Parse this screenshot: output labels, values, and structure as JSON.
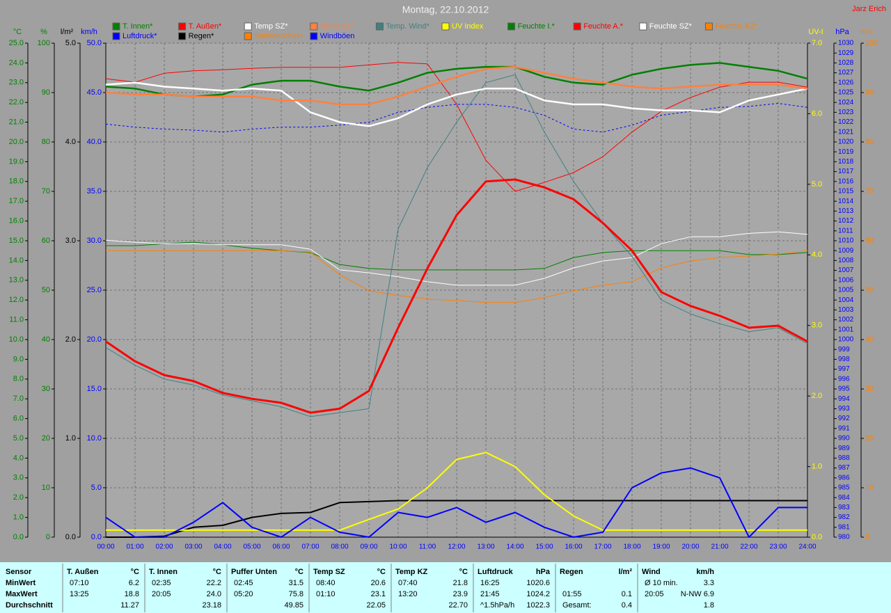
{
  "chart_data": {
    "type": "line",
    "title": "Montag, 22.10.2012",
    "author": "Jarz Erich",
    "categories": [
      "00:00",
      "01:00",
      "02:00",
      "03:00",
      "04:00",
      "05:00",
      "06:00",
      "07:00",
      "08:00",
      "09:00",
      "10:00",
      "11:00",
      "12:00",
      "13:00",
      "14:00",
      "15:00",
      "16:00",
      "17:00",
      "18:00",
      "19:00",
      "20:00",
      "21:00",
      "22:00",
      "23:00",
      "24:00"
    ],
    "grid": true,
    "axes": [
      {
        "name": "°C",
        "color": "#008000",
        "ylim": [
          0,
          25
        ],
        "yticks": [
          {
            "value": 0,
            "label": "0.0"
          },
          {
            "value": 1,
            "label": "1.0"
          },
          {
            "value": 2,
            "label": "2.0"
          },
          {
            "value": 3,
            "label": "3.0"
          },
          {
            "value": 4,
            "label": "4.0"
          },
          {
            "value": 5,
            "label": "5.0"
          },
          {
            "value": 6,
            "label": "6.0"
          },
          {
            "value": 7,
            "label": "7.0"
          },
          {
            "value": 8,
            "label": "8.0"
          },
          {
            "value": 9,
            "label": "9.0"
          },
          {
            "value": 10,
            "label": "10.0"
          },
          {
            "value": 11,
            "label": "11.0"
          },
          {
            "value": 12,
            "label": "12.0"
          },
          {
            "value": 13,
            "label": "13.0"
          },
          {
            "value": 14,
            "label": "14.0"
          },
          {
            "value": 15,
            "label": "15.0"
          },
          {
            "value": 16,
            "label": "16.0"
          },
          {
            "value": 17,
            "label": "17.0"
          },
          {
            "value": 18,
            "label": "18.0"
          },
          {
            "value": 19,
            "label": "19.0"
          },
          {
            "value": 20,
            "label": "20.0"
          },
          {
            "value": 21,
            "label": "21.0"
          },
          {
            "value": 22,
            "label": "22.0"
          },
          {
            "value": 23,
            "label": "23.0"
          },
          {
            "value": 24,
            "label": "24.0"
          },
          {
            "value": 25,
            "label": "25.0"
          }
        ]
      },
      {
        "name": "%",
        "color": "#008000",
        "ylim": [
          0,
          100
        ],
        "yticks": [
          0,
          10,
          20,
          30,
          40,
          50,
          60,
          70,
          80,
          90,
          100
        ]
      },
      {
        "name": "l/m²",
        "color": "#000000",
        "ylim": [
          0,
          5
        ],
        "yticks": [
          {
            "value": 0,
            "label": "0.0"
          },
          {
            "value": 1,
            "label": "1.0"
          },
          {
            "value": 2,
            "label": "2.0"
          },
          {
            "value": 3,
            "label": "3.0"
          },
          {
            "value": 4,
            "label": "4.0"
          },
          {
            "value": 5,
            "label": "5.0"
          }
        ]
      },
      {
        "name": "km/h",
        "color": "#0000ff",
        "ylim": [
          0,
          50
        ],
        "yticks": [
          {
            "value": 0,
            "label": "0.0"
          },
          {
            "value": 5,
            "label": "5.0"
          },
          {
            "value": 10,
            "label": "10.0"
          },
          {
            "value": 15,
            "label": "15.0"
          },
          {
            "value": 20,
            "label": "20.0"
          },
          {
            "value": 25,
            "label": "25.0"
          },
          {
            "value": 30,
            "label": "30.0"
          },
          {
            "value": 35,
            "label": "35.0"
          },
          {
            "value": 40,
            "label": "40.0"
          },
          {
            "value": 45,
            "label": "45.0"
          },
          {
            "value": 50,
            "label": "50.0"
          }
        ]
      },
      {
        "name": "UV-I",
        "color": "#ffff00",
        "ylim": [
          0,
          7
        ],
        "yticks": [
          {
            "value": 0,
            "label": "0.0"
          },
          {
            "value": 1,
            "label": "1.0"
          },
          {
            "value": 2,
            "label": "2.0"
          },
          {
            "value": 3,
            "label": "3.0"
          },
          {
            "value": 4,
            "label": "4.0"
          },
          {
            "value": 5,
            "label": "5.0"
          },
          {
            "value": 6,
            "label": "6.0"
          },
          {
            "value": 7,
            "label": "7.0"
          }
        ]
      },
      {
        "name": "hPa",
        "color": "#0000ff",
        "ylim": [
          980,
          1030
        ],
        "yticks": [
          980,
          981,
          982,
          983,
          984,
          985,
          986,
          987,
          988,
          989,
          990,
          991,
          992,
          993,
          994,
          995,
          996,
          997,
          998,
          999,
          1000,
          1001,
          1002,
          1003,
          1004,
          1005,
          1006,
          1007,
          1008,
          1009,
          1010,
          1011,
          1012,
          1013,
          1014,
          1015,
          1016,
          1017,
          1018,
          1019,
          1020,
          1021,
          1022,
          1023,
          1024,
          1025,
          1026,
          1027,
          1028,
          1029,
          1030
        ]
      },
      {
        "name": "min",
        "color": "#ff8000",
        "ylim": [
          0,
          100
        ],
        "yticks": [
          0,
          10,
          20,
          30,
          40,
          50,
          60,
          70,
          80,
          90,
          100
        ]
      }
    ],
    "series": [
      {
        "name": "T. Innen*",
        "color": "#008000",
        "axis": 0,
        "width": 2.5,
        "values": [
          22.8,
          22.7,
          22.4,
          22.3,
          22.4,
          22.9,
          23.1,
          23.1,
          22.8,
          22.6,
          23.0,
          23.5,
          23.7,
          23.8,
          23.8,
          23.3,
          23.0,
          22.9,
          23.4,
          23.7,
          23.9,
          24.0,
          23.8,
          23.6,
          23.2
        ]
      },
      {
        "name": "T. Außen*",
        "color": "#ff0000",
        "axis": 0,
        "width": 3,
        "values": [
          9.9,
          8.9,
          8.2,
          7.9,
          7.3,
          7.0,
          6.8,
          6.3,
          6.5,
          7.4,
          10.6,
          13.6,
          16.3,
          18.0,
          18.1,
          17.7,
          17.1,
          15.9,
          14.5,
          12.4,
          11.7,
          11.2,
          10.6,
          10.7,
          9.9
        ]
      },
      {
        "name": "Temp SZ*",
        "color": "#ffffff",
        "axis": 0,
        "width": 2.5,
        "values": [
          22.9,
          23.0,
          22.8,
          22.7,
          22.6,
          22.7,
          22.6,
          21.5,
          21.0,
          20.8,
          21.2,
          21.9,
          22.4,
          22.7,
          22.7,
          22.1,
          21.9,
          21.9,
          21.7,
          21.6,
          21.6,
          21.5,
          22.1,
          22.4,
          22.7
        ]
      },
      {
        "name": "Temp KZ*",
        "color": "#ff8040",
        "axis": 0,
        "width": 2.5,
        "values": [
          22.5,
          22.4,
          22.4,
          22.3,
          22.3,
          22.3,
          22.1,
          22.1,
          21.9,
          21.9,
          22.3,
          22.8,
          23.3,
          23.7,
          23.8,
          23.5,
          23.2,
          23.0,
          22.8,
          22.7,
          22.8,
          22.9,
          22.9,
          22.9,
          22.7
        ]
      },
      {
        "name": "Temp. Wind*",
        "color": "#408080",
        "axis": 0,
        "width": 1,
        "values": [
          9.6,
          8.7,
          8.0,
          7.7,
          7.2,
          6.9,
          6.6,
          6.1,
          6.3,
          6.5,
          15.6,
          18.7,
          21.0,
          23.0,
          23.4,
          20.5,
          18.0,
          15.9,
          14.2,
          12.0,
          11.3,
          10.8,
          10.4,
          10.6,
          9.8
        ]
      },
      {
        "name": "UV Index",
        "color": "#ffff00",
        "axis": 4,
        "width": 2,
        "values": [
          0.1,
          0.1,
          0.1,
          0.1,
          0.1,
          0.1,
          0.1,
          0.1,
          0.1,
          0.25,
          0.4,
          0.7,
          1.1,
          1.2,
          1.0,
          0.6,
          0.3,
          0.1,
          0.1,
          0.1,
          0.1,
          0.1,
          0.1,
          0.1,
          0.1
        ]
      },
      {
        "name": "Feuchte I.*",
        "color": "#008000",
        "axis": 1,
        "width": 1,
        "values": [
          59.0,
          59.0,
          59.4,
          59.7,
          59.2,
          58.5,
          58.0,
          57.6,
          55.2,
          54.4,
          54.1,
          54.1,
          54.1,
          54.1,
          54.1,
          54.4,
          56.6,
          57.6,
          58.0,
          58.0,
          58.0,
          58.0,
          57.2,
          57.2,
          57.6
        ]
      },
      {
        "name": "Feuchte A.*",
        "color": "#ff0000",
        "axis": 1,
        "width": 1,
        "values": [
          92.8,
          92.1,
          93.9,
          94.4,
          94.6,
          94.9,
          95.1,
          95.1,
          95.1,
          95.6,
          96.1,
          95.8,
          87.6,
          76.3,
          70.0,
          71.8,
          73.8,
          77.0,
          82.0,
          86.2,
          89.0,
          91.1,
          92.1,
          92.1,
          91.1
        ]
      },
      {
        "name": "Feuchte SZ*",
        "color": "#ffffff",
        "axis": 1,
        "width": 1,
        "values": [
          60.1,
          59.7,
          59.4,
          59.4,
          59.2,
          59.2,
          59.2,
          58.3,
          54.1,
          53.5,
          52.7,
          51.7,
          51.0,
          51.0,
          51.0,
          52.4,
          54.5,
          55.9,
          56.6,
          59.4,
          60.8,
          60.8,
          61.5,
          61.8,
          61.3
        ]
      },
      {
        "name": "Feuchte KZ*",
        "color": "#ff8000",
        "axis": 1,
        "width": 1,
        "values": [
          58.0,
          58.0,
          58.0,
          58.0,
          58.0,
          58.0,
          58.0,
          57.7,
          53.1,
          49.9,
          48.9,
          48.2,
          47.9,
          47.5,
          47.5,
          48.5,
          49.9,
          51.0,
          51.7,
          54.5,
          55.9,
          56.6,
          56.9,
          57.3,
          58.0
        ]
      },
      {
        "name": "Luftdruck*",
        "color": "#0000ff",
        "axis": 5,
        "width": 1,
        "dashed": true,
        "values": [
          1021.8,
          1021.5,
          1021.3,
          1021.2,
          1021.0,
          1021.3,
          1021.5,
          1021.5,
          1021.7,
          1022.0,
          1023.0,
          1023.5,
          1023.8,
          1023.8,
          1023.5,
          1022.7,
          1021.3,
          1021.0,
          1021.7,
          1022.7,
          1023.1,
          1023.5,
          1023.6,
          1023.9,
          1023.5
        ]
      },
      {
        "name": "Regen*",
        "color": "#000000",
        "axis": 2,
        "width": 2,
        "values": [
          0,
          0,
          0.01,
          0.1,
          0.12,
          0.2,
          0.24,
          0.25,
          0.35,
          0.36,
          0.37,
          0.37,
          0.37,
          0.37,
          0.37,
          0.37,
          0.37,
          0.37,
          0.37,
          0.37,
          0.37,
          0.37,
          0.37,
          0.37,
          0.37
        ]
      },
      {
        "name": "Sonnenschein",
        "color": "#ff8000",
        "axis": 6,
        "width": 1,
        "values": [
          null,
          null,
          null,
          null,
          null,
          null,
          null,
          null,
          null,
          null,
          null,
          null,
          null,
          null,
          null,
          null,
          null,
          null,
          null,
          null,
          null,
          null,
          null,
          null,
          null
        ]
      },
      {
        "name": "Windböen",
        "color": "#0000ff",
        "axis": 3,
        "width": 2,
        "values": [
          2.0,
          0.0,
          0.0,
          1.5,
          3.5,
          1.0,
          0.0,
          2.0,
          0.5,
          0.0,
          2.5,
          2.0,
          3.0,
          1.5,
          2.5,
          1.0,
          0.0,
          0.5,
          5.0,
          6.5,
          7.0,
          6.0,
          0.0,
          3.0,
          3.0
        ]
      }
    ]
  },
  "table": {
    "labels": [
      "Sensor",
      "MinWert",
      "MaxWert",
      "Durchschnitt"
    ],
    "blocks": [
      {
        "title": "T. Außen",
        "unit": "°C",
        "rows": [
          [
            "07:10",
            "6.2"
          ],
          [
            "13:25",
            "18.8"
          ],
          [
            null,
            "11.27"
          ]
        ]
      },
      {
        "title": "T. Innen",
        "unit": "°C",
        "rows": [
          [
            "02:35",
            "22.2"
          ],
          [
            "20:05",
            "24.0"
          ],
          [
            null,
            "23.18"
          ]
        ]
      },
      {
        "title": "Puffer Unten",
        "unit": "°C",
        "rows": [
          [
            "02:45",
            "31.5"
          ],
          [
            "05:20",
            "75.8"
          ],
          [
            null,
            "49.85"
          ]
        ]
      },
      {
        "title": "Temp SZ",
        "unit": "°C",
        "rows": [
          [
            "08:40",
            "20.6"
          ],
          [
            "01:10",
            "23.1"
          ],
          [
            null,
            "22.05"
          ]
        ]
      },
      {
        "title": "Temp KZ",
        "unit": "°C",
        "rows": [
          [
            "07:40",
            "21.8"
          ],
          [
            "13:20",
            "23.9"
          ],
          [
            null,
            "22.70"
          ]
        ]
      },
      {
        "title": "Luftdruck",
        "unit": "hPa",
        "rows": [
          [
            "16:25",
            "1020.6"
          ],
          [
            "21:45",
            "1024.2"
          ],
          [
            "^1.5hPa/h",
            "1022.3"
          ]
        ]
      },
      {
        "title": "Regen",
        "unit": "l/m²",
        "rows": [
          [
            null,
            null
          ],
          [
            "01:55",
            "0.1"
          ],
          [
            "Gesamt:",
            "0.4"
          ]
        ]
      },
      {
        "title": "Wind",
        "unit": "km/h",
        "rows": [
          [
            "Ø 10 min.",
            "3.3"
          ],
          [
            "20:05",
            "N-NW 6.9"
          ],
          [
            null,
            "1.8"
          ]
        ]
      }
    ]
  }
}
